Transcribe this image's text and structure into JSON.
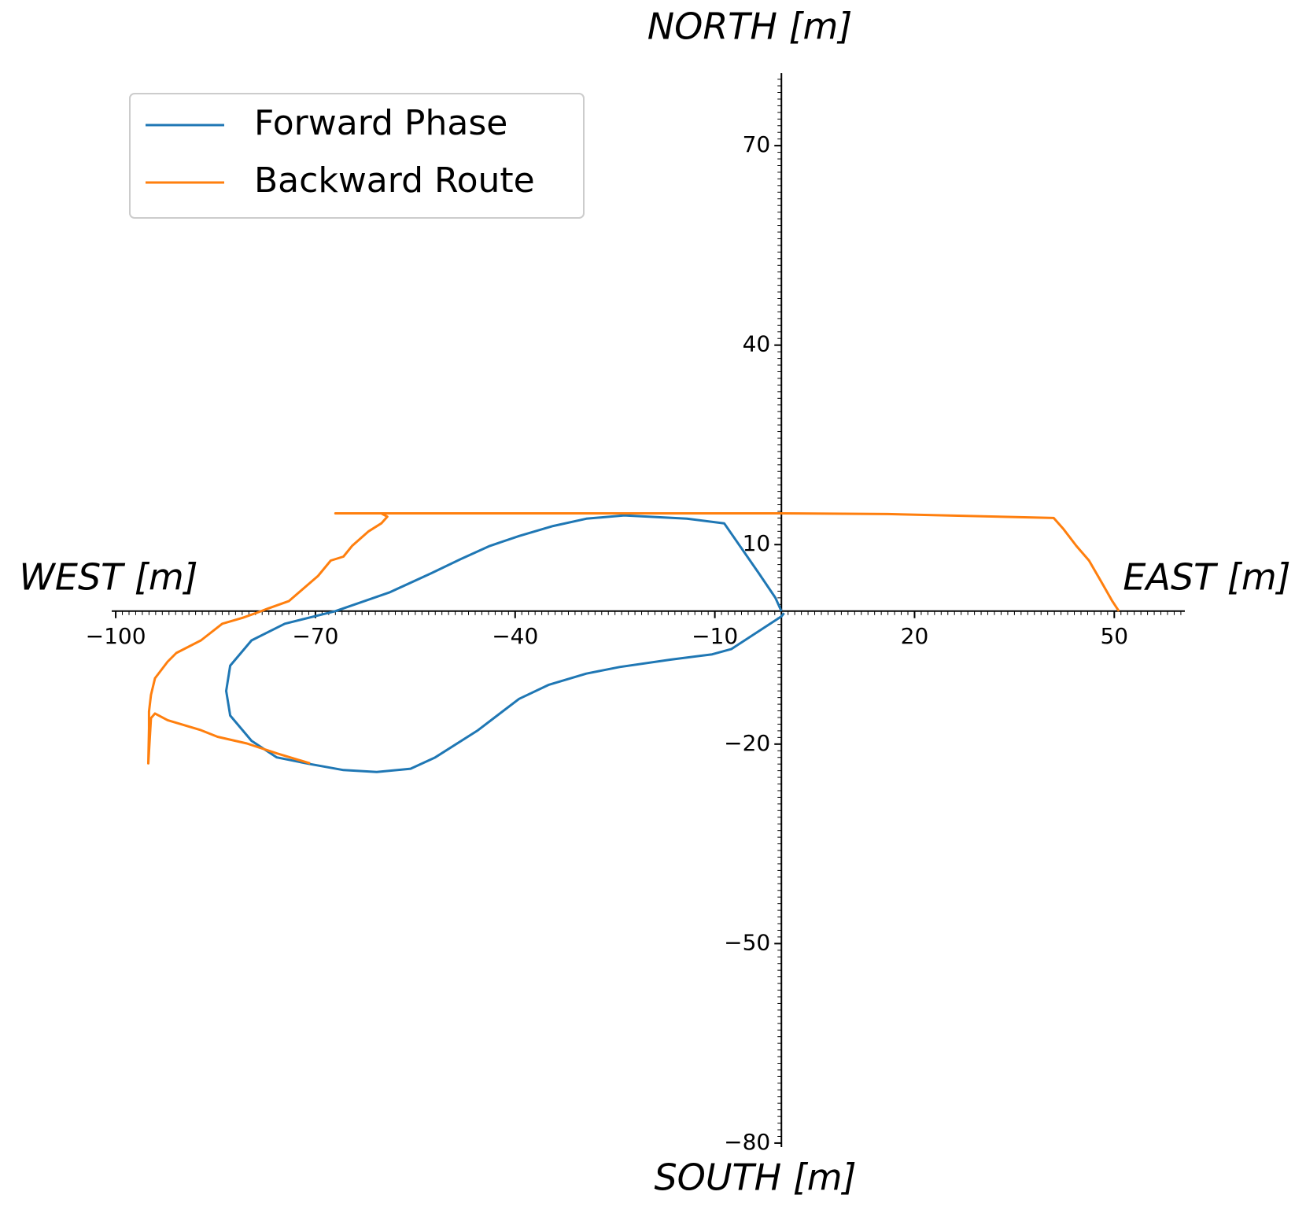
{
  "chart_data": {
    "type": "line",
    "axis_labels": {
      "north": "NORTH [m]",
      "south": "SOUTH [m]",
      "west": "WEST [m]",
      "east": "EAST [m]"
    },
    "legend": "upper left",
    "xlim": [
      -100.6,
      60.6
    ],
    "ylim": [
      -80.6,
      80.9
    ],
    "xticks": [
      {
        "value": -100,
        "label": "−100"
      },
      {
        "value": -70,
        "label": "−70"
      },
      {
        "value": -40,
        "label": "−40"
      },
      {
        "value": -10,
        "label": "−10"
      },
      20,
      50
    ],
    "yticks": [
      {
        "value": -80,
        "label": "−80"
      },
      {
        "value": -50,
        "label": "−50"
      },
      {
        "value": -20,
        "label": "−20"
      },
      10,
      40,
      70
    ],
    "series": [
      {
        "name": "Forward Phase",
        "color": "#1f77b4",
        "x": [
          0,
          -0.9,
          -3.4,
          -8.6,
          -14.2,
          -23.6,
          -29.3,
          -34.3,
          -39.4,
          -43.8,
          -48.2,
          -52.6,
          -58.9,
          -67,
          -74.6,
          -79.6,
          -82.8,
          -83.4,
          -82.8,
          -79.6,
          -75.8,
          -70.8,
          -65.8,
          -60.8,
          -55.7,
          -52,
          -45.7,
          -39.4,
          -35,
          -29.3,
          -24.3,
          -16.7,
          -10.4,
          -7.5,
          0,
          0.4
        ],
        "values": [
          0,
          2,
          5.7,
          13.2,
          13.9,
          14.4,
          13.9,
          12.8,
          11.3,
          9.8,
          7.8,
          5.7,
          2.8,
          0,
          -1.9,
          -4.4,
          -8.2,
          -12,
          -15.7,
          -19.5,
          -22,
          -23,
          -23.9,
          -24.2,
          -23.7,
          -22,
          -18,
          -13.2,
          -11.1,
          -9.4,
          -8.4,
          -7.3,
          -6.5,
          -5.7,
          -0.8,
          -0.3
        ]
      },
      {
        "name": "Backward Route",
        "color": "#ff7f0e",
        "x": [
          -70.8,
          -75.8,
          -80.3,
          -84.7,
          -87.2,
          -92.2,
          -94.1,
          -94.7,
          -95.1,
          -95,
          -95,
          -94.7,
          -94.1,
          -92.2,
          -90.9,
          -87.2,
          -84,
          -80.9,
          -78.4,
          -77.1,
          -74,
          -69.6,
          -67.7,
          -65.8,
          -64.5,
          -62,
          -60.1,
          -59.2,
          -60.1,
          -67,
          -0.4,
          16,
          40.9,
          42.4,
          44.3,
          46.2,
          48.4,
          49.7,
          50.7
        ],
        "values": [
          -22.9,
          -21.4,
          -19.9,
          -18.9,
          -17.9,
          -16.4,
          -15.4,
          -16.1,
          -22.9,
          -17.6,
          -15.1,
          -12.6,
          -10.1,
          -7.6,
          -6.3,
          -4.4,
          -1.9,
          -1,
          -0.1,
          0.4,
          1.5,
          5.3,
          7.6,
          8.2,
          9.8,
          12,
          13.2,
          14.2,
          14.7,
          14.7,
          14.7,
          14.6,
          14,
          12.3,
          9.8,
          7.6,
          3.8,
          1.5,
          0
        ]
      }
    ]
  }
}
